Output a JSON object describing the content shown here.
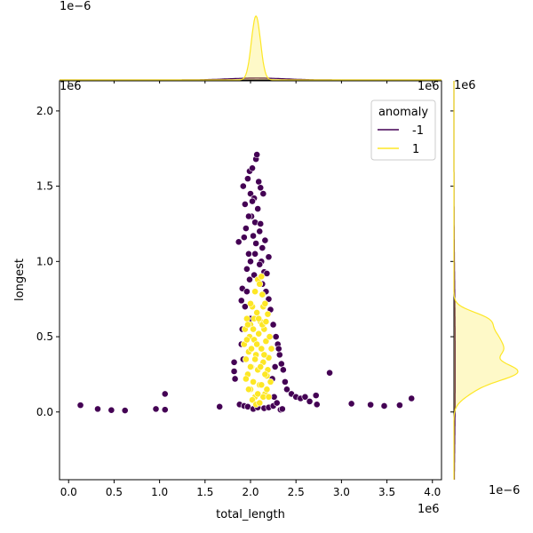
{
  "chart_data": {
    "type": "scatter",
    "title": "",
    "xlabel": "total_length",
    "ylabel": "longest",
    "x_multiplier_label": "1e6",
    "y_multiplier_label": "1e6",
    "xlim": [
      -0.1,
      4.1
    ],
    "ylim": [
      -0.45,
      2.2
    ],
    "x_unit_scale": 1000000,
    "y_unit_scale": 1000000,
    "x_ticks": [
      0.0,
      0.5,
      1.0,
      1.5,
      2.0,
      2.5,
      3.0,
      3.5,
      4.0
    ],
    "y_ticks": [
      0.0,
      0.5,
      1.0,
      1.5,
      2.0
    ],
    "x_tick_labels": [
      "0.0",
      "0.5",
      "1.0",
      "1.5",
      "2.0",
      "2.5",
      "3.0",
      "3.5",
      "4.0"
    ],
    "y_tick_labels": [
      "0.0",
      "0.5",
      "1.0",
      "1.5",
      "2.0"
    ],
    "grid": false,
    "legend": {
      "title": "anomaly",
      "placement": "top-right",
      "entries": [
        {
          "label": "-1",
          "color": "#440154"
        },
        {
          "label": "1",
          "color": "#fde725"
        }
      ]
    },
    "series": [
      {
        "name": "-1",
        "color": "#440154",
        "points": [
          [
            0.13,
            0.045
          ],
          [
            0.32,
            0.02
          ],
          [
            0.47,
            0.012
          ],
          [
            0.62,
            0.01
          ],
          [
            0.96,
            0.02
          ],
          [
            1.06,
            0.015
          ],
          [
            1.06,
            0.12
          ],
          [
            1.66,
            0.035
          ],
          [
            1.82,
            0.33
          ],
          [
            1.82,
            0.27
          ],
          [
            1.83,
            0.22
          ],
          [
            1.87,
            1.13
          ],
          [
            1.88,
            0.05
          ],
          [
            1.9,
            0.74
          ],
          [
            1.91,
            0.82
          ],
          [
            1.92,
            1.5
          ],
          [
            1.93,
            1.16
          ],
          [
            1.94,
            1.38
          ],
          [
            1.95,
            1.22
          ],
          [
            1.97,
            1.55
          ],
          [
            1.98,
            1.05
          ],
          [
            1.99,
            1.6
          ],
          [
            2.0,
            1.45
          ],
          [
            2.01,
            1.3
          ],
          [
            2.02,
            1.62
          ],
          [
            2.03,
            1.17
          ],
          [
            2.04,
            1.42
          ],
          [
            2.05,
            1.26
          ],
          [
            2.06,
            1.68
          ],
          [
            2.07,
            1.71
          ],
          [
            2.08,
            1.35
          ],
          [
            2.09,
            1.53
          ],
          [
            2.1,
            1.2
          ],
          [
            2.11,
            1.49
          ],
          [
            2.12,
            1.0
          ],
          [
            2.13,
            1.09
          ],
          [
            2.14,
            1.45
          ],
          [
            2.15,
            0.93
          ],
          [
            2.16,
            1.14
          ],
          [
            1.96,
            0.95
          ],
          [
            2.0,
            1.0
          ],
          [
            2.05,
            1.05
          ],
          [
            2.1,
            0.98
          ],
          [
            1.94,
            0.7
          ],
          [
            1.96,
            0.8
          ],
          [
            2.17,
            0.8
          ],
          [
            2.2,
            0.75
          ],
          [
            2.22,
            0.68
          ],
          [
            2.25,
            0.58
          ],
          [
            2.28,
            0.5
          ],
          [
            2.3,
            0.45
          ],
          [
            2.32,
            0.38
          ],
          [
            2.34,
            0.32
          ],
          [
            2.36,
            0.28
          ],
          [
            2.38,
            0.2
          ],
          [
            2.4,
            0.15
          ],
          [
            2.45,
            0.12
          ],
          [
            2.5,
            0.1
          ],
          [
            2.55,
            0.09
          ],
          [
            2.6,
            0.1
          ],
          [
            2.65,
            0.07
          ],
          [
            2.72,
            0.11
          ],
          [
            2.73,
            0.05
          ],
          [
            2.87,
            0.26
          ],
          [
            3.11,
            0.055
          ],
          [
            3.32,
            0.048
          ],
          [
            3.47,
            0.04
          ],
          [
            3.64,
            0.045
          ],
          [
            3.77,
            0.09
          ],
          [
            1.93,
            0.04
          ],
          [
            1.97,
            0.035
          ],
          [
            2.03,
            0.02
          ],
          [
            2.08,
            0.03
          ],
          [
            2.15,
            0.025
          ],
          [
            2.2,
            0.03
          ],
          [
            2.25,
            0.04
          ],
          [
            2.33,
            0.015
          ],
          [
            2.35,
            0.02
          ],
          [
            2.29,
            0.06
          ],
          [
            2.26,
            0.1
          ],
          [
            1.9,
            0.45
          ],
          [
            1.91,
            0.55
          ],
          [
            1.92,
            0.35
          ],
          [
            2.24,
            0.22
          ],
          [
            2.27,
            0.3
          ],
          [
            2.31,
            0.42
          ],
          [
            2.18,
            0.92
          ],
          [
            2.2,
            1.03
          ],
          [
            1.99,
            0.88
          ],
          [
            2.04,
            0.91
          ],
          [
            2.0,
            0.62
          ],
          [
            2.13,
            0.85
          ],
          [
            2.06,
            1.12
          ],
          [
            2.11,
            1.25
          ],
          [
            1.98,
            1.3
          ],
          [
            2.02,
            1.4
          ]
        ]
      },
      {
        "name": "1",
        "color": "#fde725",
        "points": [
          [
            1.93,
            0.45
          ],
          [
            1.94,
            0.55
          ],
          [
            1.95,
            0.35
          ],
          [
            1.96,
            0.62
          ],
          [
            1.97,
            0.25
          ],
          [
            1.98,
            0.4
          ],
          [
            1.99,
            0.5
          ],
          [
            2.0,
            0.15
          ],
          [
            2.0,
            0.58
          ],
          [
            2.01,
            0.3
          ],
          [
            2.02,
            0.7
          ],
          [
            2.03,
            0.2
          ],
          [
            2.04,
            0.48
          ],
          [
            2.05,
            0.1
          ],
          [
            2.06,
            0.38
          ],
          [
            2.07,
            0.66
          ],
          [
            2.08,
            0.28
          ],
          [
            2.09,
            0.52
          ],
          [
            2.1,
            0.18
          ],
          [
            2.11,
            0.6
          ],
          [
            2.12,
            0.42
          ],
          [
            2.13,
            0.78
          ],
          [
            2.14,
            0.33
          ],
          [
            2.15,
            0.55
          ],
          [
            2.16,
            0.12
          ],
          [
            2.17,
            0.47
          ],
          [
            2.18,
            0.24
          ],
          [
            2.19,
            0.65
          ],
          [
            2.2,
            0.36
          ],
          [
            2.21,
            0.5
          ],
          [
            2.22,
            0.2
          ],
          [
            2.23,
            0.42
          ],
          [
            2.05,
            0.8
          ],
          [
            2.08,
            0.88
          ],
          [
            2.1,
            0.85
          ],
          [
            2.12,
            0.9
          ],
          [
            2.14,
            0.7
          ],
          [
            2.16,
            0.72
          ],
          [
            2.04,
            0.62
          ],
          [
            2.0,
            0.72
          ],
          [
            1.96,
            0.48
          ],
          [
            1.98,
            0.15
          ],
          [
            2.02,
            0.08
          ],
          [
            2.06,
            0.05
          ],
          [
            2.1,
            0.06
          ],
          [
            2.14,
            0.1
          ],
          [
            2.18,
            0.15
          ],
          [
            2.2,
            0.1
          ],
          [
            1.95,
            0.22
          ],
          [
            2.01,
            0.42
          ],
          [
            2.07,
            0.45
          ],
          [
            2.11,
            0.3
          ],
          [
            2.15,
            0.38
          ],
          [
            2.19,
            0.28
          ],
          [
            2.03,
            0.55
          ],
          [
            2.09,
            0.62
          ],
          [
            2.13,
            0.58
          ],
          [
            2.17,
            0.6
          ],
          [
            1.97,
            0.58
          ],
          [
            2.05,
            0.35
          ],
          [
            2.0,
            0.3
          ],
          [
            2.12,
            0.18
          ],
          [
            2.08,
            0.12
          ],
          [
            2.16,
            0.25
          ]
        ]
      }
    ],
    "marginal_top": {
      "tick_label": "1e−6",
      "series": [
        {
          "name": "-1",
          "color": "#440154",
          "peak_x": 2.07,
          "spread": 0.3,
          "relative_height": 0.03
        },
        {
          "name": "1",
          "color": "#fde725",
          "peak_x": 2.06,
          "spread": 0.05,
          "relative_height": 1.0
        }
      ]
    },
    "marginal_right": {
      "tick_label": "1e−6",
      "series": [
        {
          "name": "-1",
          "color": "#440154",
          "peak_y": 0.3,
          "spread": 0.5,
          "relative_height": 0.02
        },
        {
          "name": "1",
          "color": "#fde725",
          "peak_y": 0.27,
          "spread": 0.2,
          "relative_height": 1.0
        }
      ]
    }
  }
}
